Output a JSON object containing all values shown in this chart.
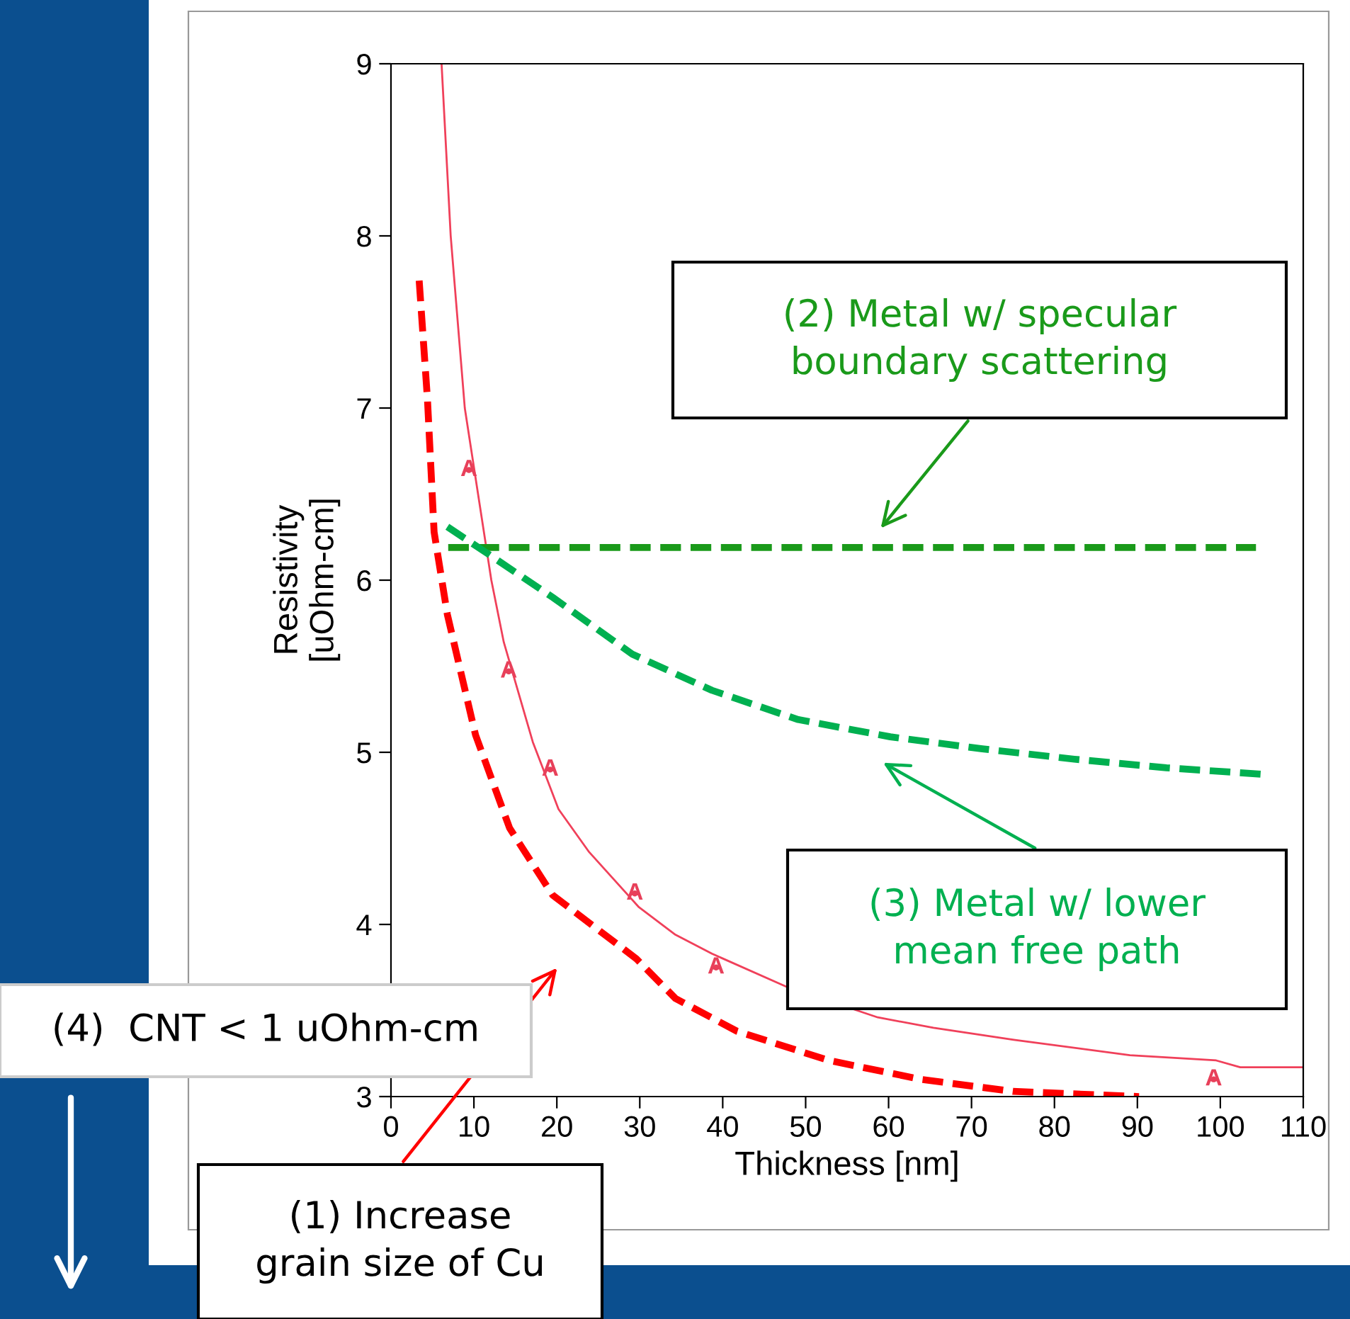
{
  "chart_data": {
    "type": "line",
    "xlabel": "Thickness [nm]",
    "ylabel": "Resistivity\n[uOhm-cm]",
    "xlim": [
      0,
      110
    ],
    "ylim": [
      3,
      9
    ],
    "xticks": [
      0,
      10,
      20,
      30,
      40,
      50,
      60,
      70,
      80,
      90,
      100,
      110
    ],
    "yticks": [
      3,
      4,
      5,
      6,
      7,
      8,
      9
    ],
    "grid": false,
    "series": [
      {
        "color": "#f0405a",
        "line_style": "solid",
        "x": [
          6.1,
          7.2,
          8.9,
          12.1,
          13.6,
          17.1,
          20.2,
          23.9,
          29.9,
          34.3,
          38.7,
          47.6,
          58.7,
          65.4,
          75.1,
          89.1,
          99.5,
          102.4,
          110
        ],
        "values": [
          9,
          8,
          7,
          6,
          5.64,
          5.06,
          4.67,
          4.42,
          4.1,
          3.94,
          3.83,
          3.64,
          3.46,
          3.4,
          3.33,
          3.24,
          3.21,
          3.17,
          3.17
        ]
      },
      {
        "type": "scatter",
        "color": "#e8405a",
        "marker": "none",
        "x": [
          9.4,
          14.2,
          19.2,
          29.4,
          39.2,
          99.2
        ],
        "values": [
          6.64,
          5.47,
          4.9,
          4.18,
          3.75,
          3.1
        ],
        "value_labels": [
          "A",
          "A",
          "A",
          "A",
          "A",
          "A"
        ]
      },
      {
        "color": "#ff0000",
        "line_style": "dashed",
        "x": [
          3.4,
          4.4,
          5.2,
          6.8,
          8.4,
          10.2,
          14.3,
          19.5,
          29.6,
          34.3,
          41.7,
          52.8,
          63.9,
          75,
          90.2
        ],
        "values": [
          7.74,
          7.05,
          6.28,
          5.8,
          5.47,
          5.1,
          4.56,
          4.17,
          3.8,
          3.57,
          3.38,
          3.21,
          3.1,
          3.03,
          3.0
        ]
      },
      {
        "color": "#1a9a1a",
        "line_style": "dashed",
        "x": [
          6.9,
          104.3
        ],
        "values": [
          6.19,
          6.19
        ]
      },
      {
        "color": "#00b050",
        "line_style": "dashed",
        "x": [
          6.8,
          12.1,
          19.5,
          29.1,
          38.7,
          49.1,
          60.2,
          71.3,
          82.4,
          93.5,
          105.8
        ],
        "values": [
          6.31,
          6.14,
          5.9,
          5.57,
          5.36,
          5.19,
          5.09,
          5.02,
          4.96,
          4.91,
          4.87
        ]
      }
    ],
    "annotations": [
      "(2) Metal w/ specular\nboundary scattering",
      "(3) Metal w/ lower\nmean free path",
      "(4)  CNT < 1 uOhm-cm",
      "(1) Increase\ngrain size of Cu"
    ]
  }
}
